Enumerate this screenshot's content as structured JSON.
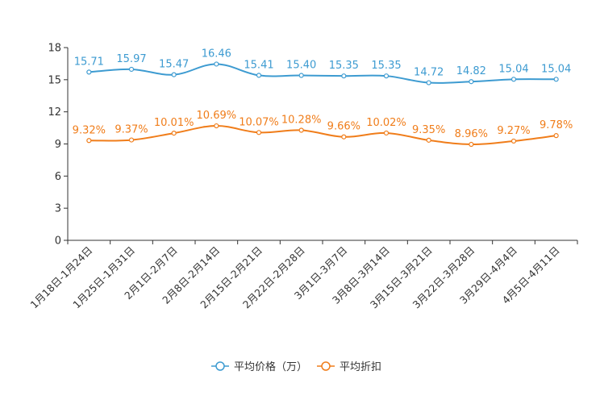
{
  "chart_data": {
    "type": "line",
    "title": "",
    "xlabel": "",
    "ylabel": "",
    "ylim": [
      0,
      18
    ],
    "yticks": [
      0,
      3,
      6,
      9,
      12,
      15,
      18
    ],
    "grid": false,
    "legend_position": "bottom-center",
    "categories": [
      "1月18日-1月24日",
      "1月25日-1月31日",
      "2月1日-2月7日",
      "2月8日-2月14日",
      "2月15日-2月21日",
      "2月22日-2月28日",
      "3月1日-3月7日",
      "3月8日-3月14日",
      "3月15日-3月21日",
      "3月22日-3月28日",
      "3月29日-4月4日",
      "4月5日-4月11日"
    ],
    "series": [
      {
        "name": "平均价格（万）",
        "color": "#3d9bd1",
        "values": [
          15.71,
          15.97,
          15.47,
          16.46,
          15.41,
          15.4,
          15.35,
          15.35,
          14.72,
          14.82,
          15.04,
          15.04
        ],
        "labels": [
          "15.71",
          "15.97",
          "15.47",
          "16.46",
          "15.41",
          "15.40",
          "15.35",
          "15.35",
          "14.72",
          "14.82",
          "15.04",
          "15.04"
        ]
      },
      {
        "name": "平均折扣",
        "color": "#f07d1a",
        "values": [
          9.32,
          9.37,
          10.01,
          10.69,
          10.07,
          10.28,
          9.66,
          10.02,
          9.35,
          8.96,
          9.27,
          9.78
        ],
        "labels": [
          "9.32%",
          "9.37%",
          "10.01%",
          "10.69%",
          "10.07%",
          "10.28%",
          "9.66%",
          "10.02%",
          "9.35%",
          "8.96%",
          "9.27%",
          "9.78%"
        ]
      }
    ]
  }
}
